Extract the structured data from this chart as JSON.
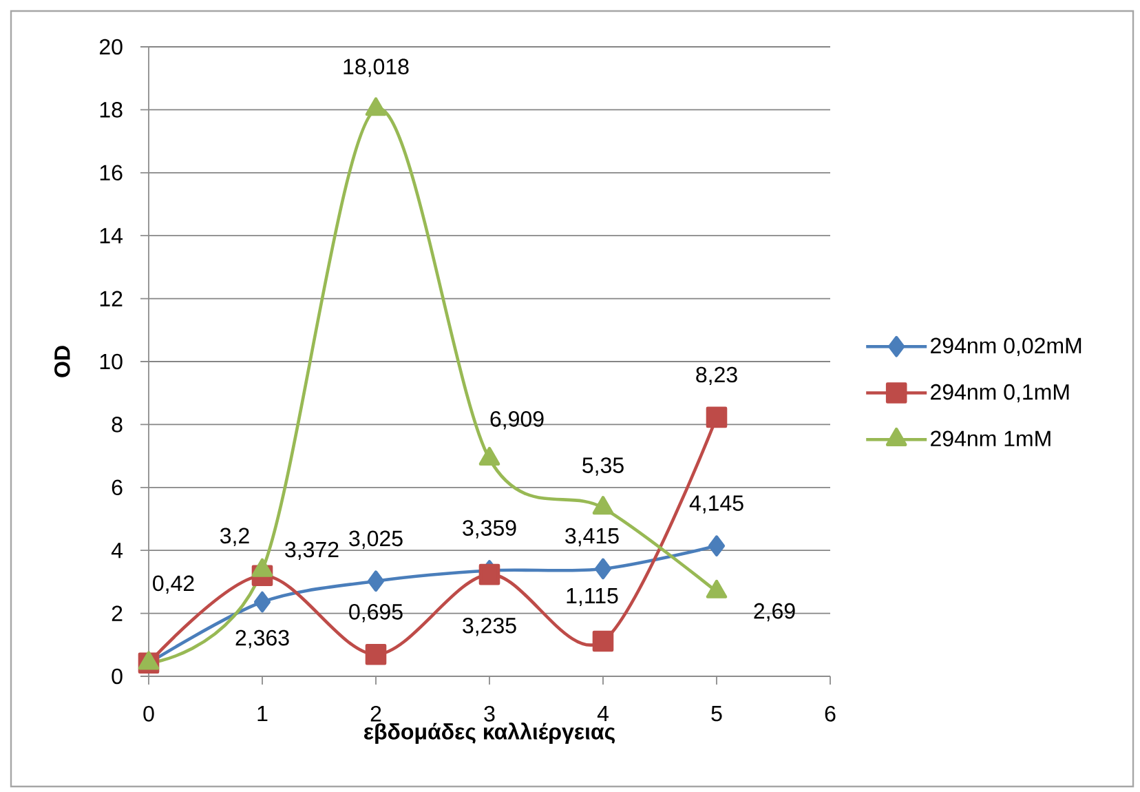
{
  "chart_data": {
    "type": "line",
    "xlabel": "εβδομάδες καλλιέργειας",
    "ylabel": "OD",
    "x": [
      0,
      1,
      2,
      3,
      4,
      5
    ],
    "xlim": [
      0,
      6
    ],
    "xticks": [
      0,
      1,
      2,
      3,
      4,
      5,
      6
    ],
    "ylim": [
      0,
      20
    ],
    "yticks": [
      0,
      2,
      4,
      6,
      8,
      10,
      12,
      14,
      16,
      18,
      20
    ],
    "grid": "y",
    "legend": "right",
    "line_style": "solid",
    "series": [
      {
        "name": "294nm 0,02mM",
        "color": "#4a7ebb",
        "marker": "diamond",
        "values": [
          0.42,
          2.363,
          3.025,
          3.359,
          3.415,
          4.145
        ],
        "value_labels": [
          "0,42",
          "2,363",
          "3,025",
          "3,359",
          "3,415",
          "4,145"
        ]
      },
      {
        "name": "294nm 0,1mM",
        "color": "#be4b48",
        "marker": "square",
        "values": [
          0.42,
          3.2,
          0.695,
          3.235,
          1.115,
          8.23
        ],
        "value_labels": [
          null,
          "3,2",
          "0,695",
          "3,235",
          "1,115",
          "8,23"
        ]
      },
      {
        "name": "294nm 1mM",
        "color": "#98b954",
        "marker": "triangle",
        "values": [
          0.42,
          3.372,
          18.018,
          6.909,
          5.35,
          2.69
        ],
        "value_labels": [
          null,
          "3,372",
          "18,018",
          "6,909",
          "5,35",
          "2,69"
        ]
      }
    ]
  }
}
